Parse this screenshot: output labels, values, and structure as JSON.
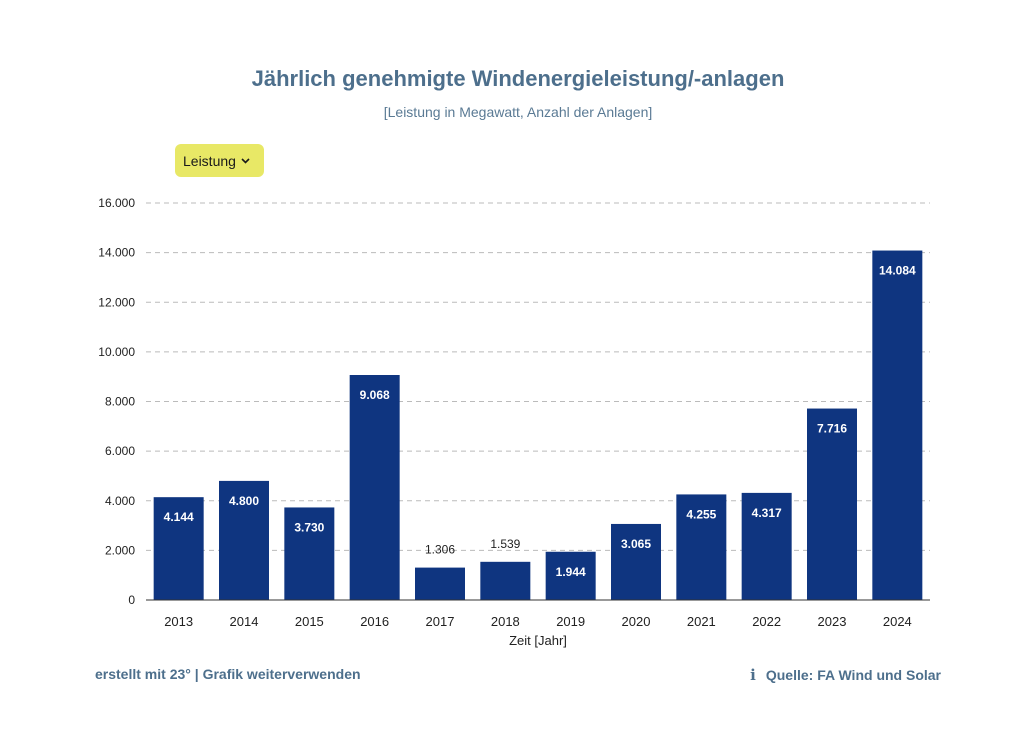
{
  "header": {
    "title": "Jährlich genehmigte Windenergieleistung/-anlagen",
    "subtitle": "[Leistung in Megawatt, Anzahl der Anlagen]"
  },
  "dropdown": {
    "label": "Leistung",
    "icon": "chevron-down-icon"
  },
  "chart_data": {
    "type": "bar",
    "title": "Jährlich genehmigte Windenergieleistung/-anlagen",
    "subtitle": "[Leistung in Megawatt, Anzahl der Anlagen]",
    "xlabel": "Zeit [Jahr]",
    "ylabel": "",
    "ylim": [
      0,
      16000
    ],
    "yticks": [
      0,
      2000,
      4000,
      6000,
      8000,
      10000,
      12000,
      14000,
      16000
    ],
    "ytick_labels": [
      "0",
      "2.000",
      "4.000",
      "6.000",
      "8.000",
      "10.000",
      "12.000",
      "14.000",
      "16.000"
    ],
    "grid": true,
    "categories": [
      "2013",
      "2014",
      "2015",
      "2016",
      "2017",
      "2018",
      "2019",
      "2020",
      "2021",
      "2022",
      "2023",
      "2024"
    ],
    "values": [
      4144,
      4800,
      3730,
      9068,
      1306,
      1539,
      1944,
      3065,
      4255,
      4317,
      7716,
      14084
    ],
    "value_labels": [
      "4.144",
      "4.800",
      "3.730",
      "9.068",
      "1.306",
      "1.539",
      "1.944",
      "3.065",
      "4.255",
      "4.317",
      "7.716",
      "14.084"
    ],
    "bar_color": "#0f3580"
  },
  "footer": {
    "created": "erstellt mit 23°",
    "separator": " | ",
    "reuse": "Grafik  weiterverwenden",
    "info_icon": "info-icon",
    "source": "Quelle: FA Wind und Solar"
  }
}
